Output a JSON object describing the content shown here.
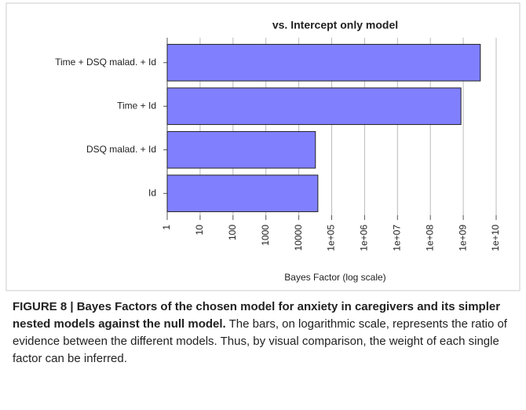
{
  "chart_data": {
    "type": "barh",
    "title": "vs. Intercept only model",
    "categories": [
      "Time + DSQ malad. + Id",
      "Time + Id",
      "DSQ malad. + Id",
      "Id"
    ],
    "values": [
      3300000000,
      850000000,
      32000,
      38000
    ],
    "color": "#8080ff",
    "xlabel": "Bayes Factor (log scale)",
    "xscale": "log",
    "xlim": [
      1,
      10000000000
    ],
    "xticks": [
      1,
      10,
      100,
      1000,
      10000,
      {
        "value": 100000,
        "label": "1e+05"
      },
      {
        "value": 1000000,
        "label": "1e+06"
      },
      {
        "value": 10000000,
        "label": "1e+07"
      },
      {
        "value": 100000000,
        "label": "1e+08"
      },
      {
        "value": 1000000000,
        "label": "1e+09"
      },
      {
        "value": 10000000000,
        "label": "1e+10"
      }
    ],
    "grid": true
  },
  "caption": {
    "title": "FIGURE 8 | Bayes Factors of the chosen model for anxiety in caregivers and its simpler nested models against the null model.",
    "text": "The bars, on logarithmic scale, represents the ratio of evidence between the different models. Thus, by visual comparison, the weight of each single factor can be inferred."
  }
}
